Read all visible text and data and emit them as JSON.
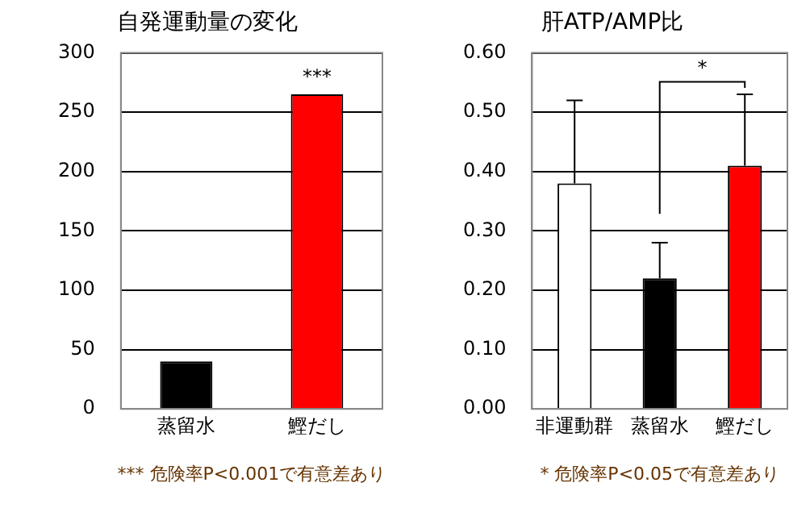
{
  "chart_data": [
    {
      "type": "bar",
      "title": "自発運動量の変化",
      "categories": [
        "蒸留水",
        "鰹だし"
      ],
      "values": [
        40,
        265
      ],
      "colors": [
        "#000000",
        "#ff0000"
      ],
      "ylim": [
        0,
        300
      ],
      "yticks": [
        0,
        50,
        100,
        150,
        200,
        250,
        300
      ],
      "grid": "y",
      "annotations": [
        "***",
        "*** 危険率P<0.001で有意差あり"
      ]
    },
    {
      "type": "bar",
      "title": "肝ATP/AMP比",
      "categories": [
        "非運動群",
        "蒸留水",
        "鰹だし"
      ],
      "values": [
        0.38,
        0.22,
        0.41
      ],
      "colors": [
        "#ffffff",
        "#000000",
        "#ff0000"
      ],
      "errors": [
        [
          0.38,
          0.52
        ],
        [
          0.22,
          0.28
        ],
        [
          0.41,
          0.53
        ]
      ],
      "ylim": [
        0,
        0.6
      ],
      "yticks": [
        {
          "value": 0,
          "label": "0.00"
        },
        {
          "value": 0.1,
          "label": "0.10"
        },
        {
          "value": 0.2,
          "label": "0.20"
        },
        {
          "value": 0.3,
          "label": "0.30"
        },
        {
          "value": 0.4,
          "label": "0.40"
        },
        {
          "value": 0.5,
          "label": "0.50"
        },
        {
          "value": 0.6,
          "label": "0.60"
        }
      ],
      "grid": "y",
      "annotations": [
        "*",
        "* 危険率P<0.05で有意差あり"
      ]
    }
  ]
}
